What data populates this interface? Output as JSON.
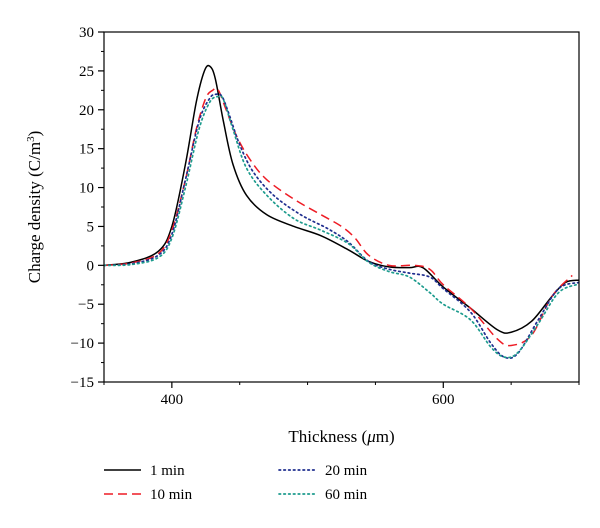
{
  "chart_data": {
    "type": "line",
    "title": "",
    "xlabel_parts": [
      "Thickness (",
      "μ",
      "m)"
    ],
    "ylabel_parts": [
      "Charge density (C/m",
      "3",
      ")"
    ],
    "xlim": [
      350,
      700
    ],
    "ylim": [
      -15,
      30
    ],
    "xticks": [
      400,
      600
    ],
    "xtick_labels": [
      "400",
      "600"
    ],
    "xminor": [
      350,
      450,
      500,
      550,
      650,
      700
    ],
    "yticks": [
      -15,
      -10,
      -5,
      0,
      5,
      10,
      15,
      20,
      25,
      30
    ],
    "ytick_labels": [
      "−15",
      "−10",
      "−5",
      "0",
      "5",
      "10",
      "15",
      "20",
      "25",
      "30"
    ],
    "grid": false,
    "legend_position": "bottom",
    "series": [
      {
        "name": "1 min",
        "color": "#000000",
        "dash": "solid",
        "x": [
          350,
          370,
          390,
          400,
          410,
          418,
          424,
          428,
          432,
          438,
          445,
          455,
          470,
          490,
          510,
          530,
          545,
          560,
          575,
          585,
          600,
          620,
          640,
          650,
          665,
          680,
          690,
          700
        ],
        "y": [
          0,
          0.4,
          1.8,
          5,
          13,
          21,
          25,
          25.6,
          24,
          18.5,
          13,
          9,
          6.5,
          5,
          3.8,
          2,
          0.5,
          -0.2,
          -0.3,
          -0.3,
          -2.8,
          -5.5,
          -8.3,
          -8.6,
          -7.2,
          -4,
          -2.2,
          -1.9
        ]
      },
      {
        "name": "10 min",
        "color": "#ee1c25",
        "dash": "dashed",
        "x": [
          350,
          370,
          390,
          400,
          410,
          418,
          425,
          430,
          434,
          440,
          448,
          458,
          470,
          490,
          510,
          525,
          535,
          545,
          560,
          578,
          590,
          600,
          620,
          640,
          650,
          665,
          680,
          695
        ],
        "y": [
          0,
          0.3,
          1.5,
          4.5,
          11,
          17.5,
          21.5,
          22.5,
          22.6,
          20,
          16.5,
          13.5,
          11,
          8.5,
          6.5,
          5,
          3.5,
          1.3,
          0,
          0,
          -0.5,
          -2.5,
          -5.5,
          -9.5,
          -10.3,
          -9,
          -4,
          -1.3
        ]
      },
      {
        "name": "20 min",
        "color": "#1f2e8f",
        "dash": "dotted",
        "x": [
          350,
          370,
          390,
          400,
          410,
          420,
          428,
          433,
          437,
          442,
          450,
          460,
          475,
          495,
          515,
          530,
          545,
          560,
          575,
          590,
          600,
          620,
          635,
          645,
          655,
          670,
          685,
          700
        ],
        "y": [
          0,
          0.2,
          1.3,
          4,
          11,
          18.5,
          21.5,
          22,
          21.7,
          19.5,
          15.5,
          12,
          9,
          6.5,
          4.7,
          3,
          0.5,
          -0.5,
          -1,
          -1.5,
          -3,
          -6,
          -10,
          -11.8,
          -11.3,
          -7,
          -3,
          -2.2
        ]
      },
      {
        "name": "60 min",
        "color": "#1c9b8d",
        "dash": "dotted",
        "x": [
          350,
          370,
          390,
          400,
          410,
          420,
          428,
          434,
          438,
          445,
          455,
          470,
          490,
          510,
          530,
          545,
          560,
          575,
          590,
          600,
          620,
          635,
          645,
          655,
          670,
          685,
          700
        ],
        "y": [
          0,
          0.1,
          1,
          3.5,
          10,
          17.5,
          21,
          21.7,
          21.3,
          17.5,
          12.5,
          9,
          6,
          4.5,
          2.8,
          0.4,
          -0.8,
          -1.5,
          -3.5,
          -5,
          -7,
          -10.5,
          -11.8,
          -11.2,
          -7.5,
          -3.5,
          -2.4
        ]
      }
    ]
  }
}
